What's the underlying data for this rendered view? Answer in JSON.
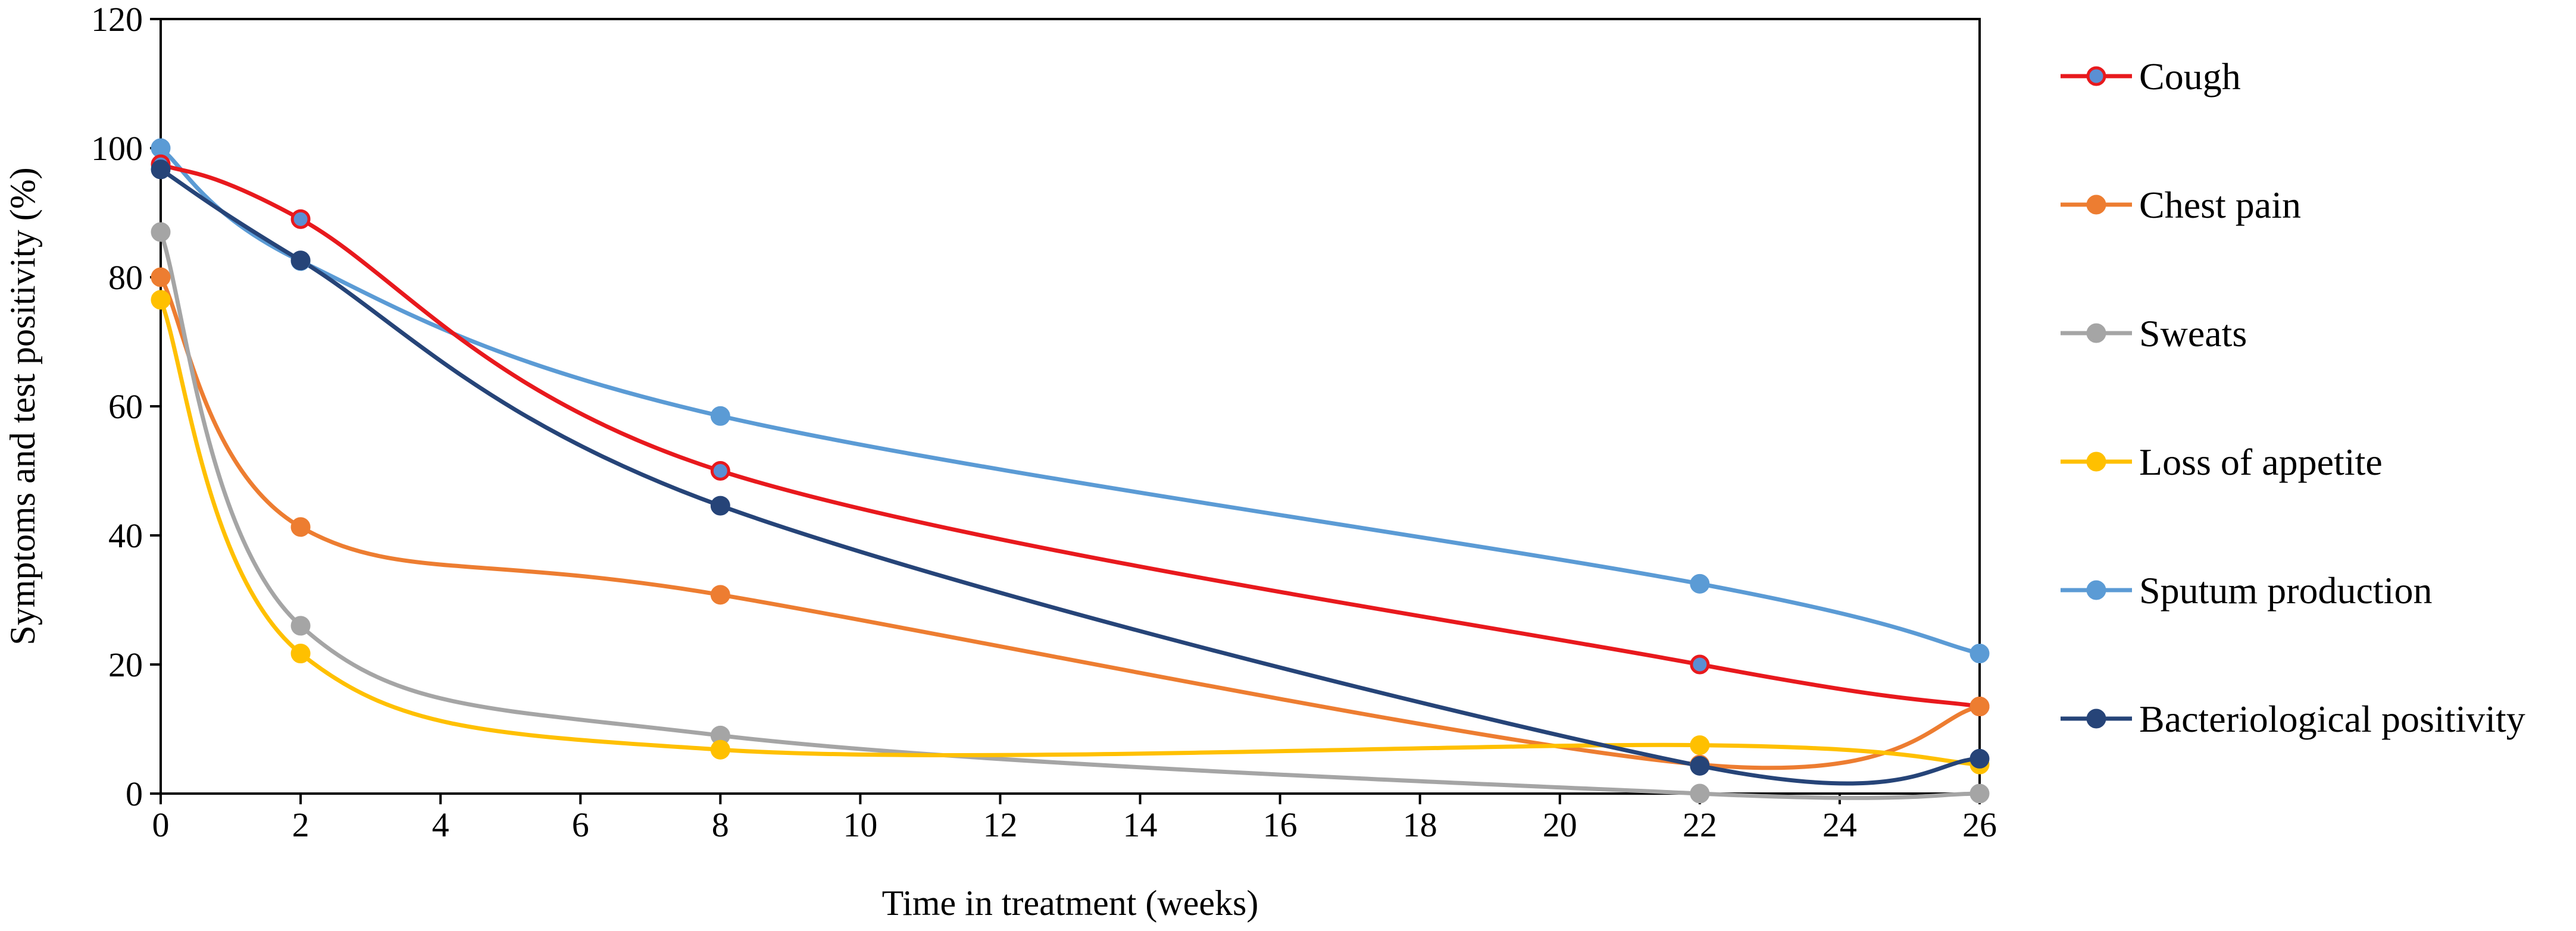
{
  "chart_data": {
    "type": "line",
    "title": "",
    "xlabel": "Time in treatment (weeks)",
    "ylabel": "Symptoms and test positivity (%)",
    "xlim": [
      0,
      26
    ],
    "ylim": [
      0,
      120
    ],
    "xticks": [
      0,
      2,
      4,
      6,
      8,
      10,
      12,
      14,
      16,
      18,
      20,
      22,
      24,
      26
    ],
    "yticks": [
      0,
      20,
      40,
      60,
      80,
      100,
      120
    ],
    "grid": false,
    "legend_position": "right",
    "x": [
      0,
      2,
      8,
      22,
      26
    ],
    "series": [
      {
        "name": "Cough",
        "color": "#e8191d",
        "marker_fill": "#5b8fd3",
        "values": [
          97.5,
          89,
          50,
          20,
          13.5
        ]
      },
      {
        "name": "Chest pain",
        "color": "#ed7d31",
        "marker_fill": "#ed7d31",
        "values": [
          80,
          41.3,
          30.8,
          4.5,
          13.5
        ]
      },
      {
        "name": "Sweats",
        "color": "#a5a5a5",
        "marker_fill": "#a5a5a5",
        "values": [
          87,
          26,
          9,
          0,
          0
        ]
      },
      {
        "name": "Loss of appetite",
        "color": "#ffc000",
        "marker_fill": "#ffc000",
        "values": [
          76.5,
          21.7,
          6.8,
          7.5,
          4.5
        ]
      },
      {
        "name": "Sputum production",
        "color": "#5b9bd5",
        "marker_fill": "#5b9bd5",
        "values": [
          100,
          82.5,
          58.5,
          32.5,
          21.7
        ]
      },
      {
        "name": "Bacteriological positivity",
        "color": "#264478",
        "marker_fill": "#264478",
        "values": [
          96.7,
          82.6,
          44.6,
          4.3,
          5.4
        ]
      }
    ]
  }
}
